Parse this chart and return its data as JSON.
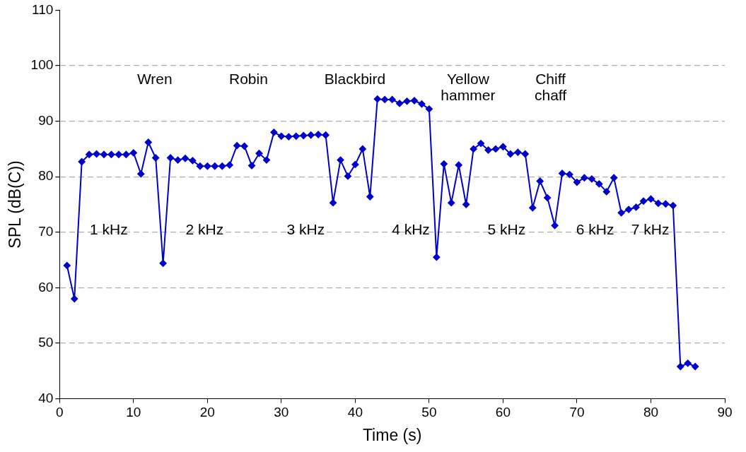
{
  "chart_data": {
    "type": "line",
    "xlabel": "Time (s)",
    "ylabel": "SPL (dB(C))",
    "x": [
      1,
      2,
      3,
      4,
      5,
      6,
      7,
      8,
      9,
      10,
      11,
      12,
      13,
      14,
      15,
      16,
      17,
      18,
      19,
      20,
      21,
      22,
      23,
      24,
      25,
      26,
      27,
      28,
      29,
      30,
      31,
      32,
      33,
      34,
      35,
      36,
      37,
      38,
      39,
      40,
      41,
      42,
      43,
      44,
      45,
      46,
      47,
      48,
      49,
      50,
      51,
      52,
      53,
      54,
      55,
      56,
      57,
      58,
      59,
      60,
      61,
      62,
      63,
      64,
      65,
      66,
      67,
      68,
      69,
      70,
      71,
      72,
      73,
      74,
      75,
      76,
      77,
      78,
      79,
      80,
      81,
      82,
      83,
      84,
      85,
      86
    ],
    "series": [
      {
        "color": "#0000cc",
        "values": [
          64,
          58,
          82.7,
          84,
          84.1,
          84,
          84,
          84,
          84,
          84.3,
          80.5,
          86.2,
          83.4,
          64.4,
          83.4,
          83,
          83.3,
          82.9,
          81.9,
          81.9,
          81.9,
          81.9,
          82.1,
          85.6,
          85.5,
          82,
          84.2,
          83,
          88,
          87.3,
          87.2,
          87.3,
          87.4,
          87.5,
          87.6,
          87.5,
          75.3,
          83,
          80.1,
          82.2,
          85,
          76.4,
          94,
          93.9,
          93.9,
          93.2,
          93.6,
          93.7,
          93.1,
          92.2,
          65.5,
          82.3,
          75.3,
          82.1,
          75,
          85,
          86,
          84.8,
          85,
          85.4,
          84.1,
          84.4,
          84.1,
          74.4,
          79.2,
          76.2,
          71.2,
          80.6,
          80.4,
          79,
          79.8,
          79.6,
          78.7,
          77.3,
          79.8,
          73.5,
          74.1,
          74.5,
          75.6,
          76,
          75.2,
          75.1,
          74.8,
          45.8,
          46.4,
          45.8
        ]
      }
    ],
    "xlim": [
      0,
      90
    ],
    "xticks": [
      0,
      10,
      20,
      30,
      40,
      50,
      60,
      70,
      80,
      90
    ],
    "ylim": [
      40,
      110
    ],
    "yticks": [
      40,
      50,
      60,
      70,
      80,
      90,
      100,
      110
    ],
    "grid": "y",
    "legend": false,
    "marker": "diamond",
    "line_style": "solid",
    "annotations": [
      "Wren",
      "Robin",
      "Blackbird",
      "Yellow\nhammer",
      "Chiff\nchaff",
      "1 kHz",
      "2 kHz",
      "3 kHz",
      "4 kHz",
      "5 kHz",
      "6 kHz",
      "7 kHz"
    ]
  }
}
